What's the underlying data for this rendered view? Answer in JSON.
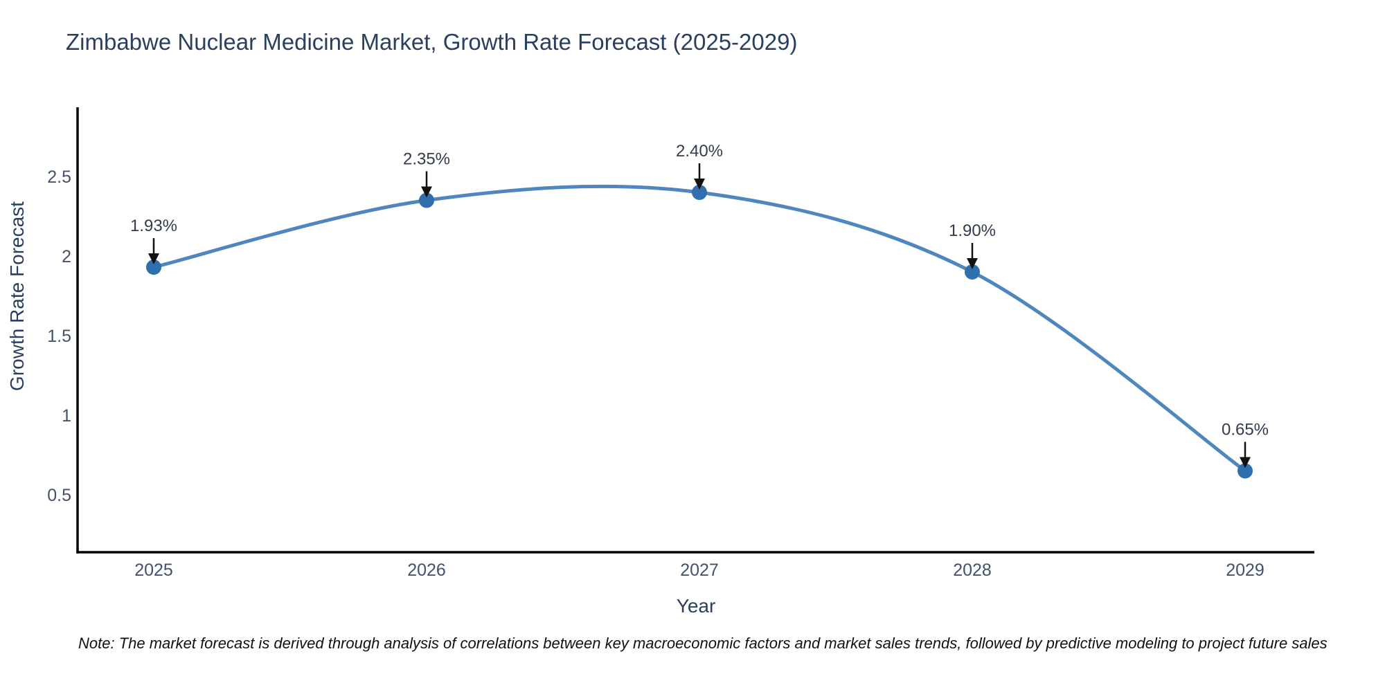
{
  "title": "Zimbabwe Nuclear Medicine Market, Growth Rate Forecast (2025-2029)",
  "note": "Note: The market forecast is derived through analysis of correlations between key macroeconomic factors and market sales trends, followed by predictive modeling to project future sales",
  "chart_data": {
    "type": "line",
    "title": "Zimbabwe Nuclear Medicine Market, Growth Rate Forecast (2025-2029)",
    "xlabel": "Year",
    "ylabel": "Growth Rate Forecast",
    "x": [
      2025,
      2026,
      2027,
      2028,
      2029
    ],
    "values": [
      1.93,
      2.35,
      2.4,
      1.9,
      0.65
    ],
    "point_labels": [
      "1.93%",
      "2.35%",
      "2.40%",
      "1.90%",
      "0.65%"
    ],
    "xticks": [
      "2025",
      "2026",
      "2027",
      "2028",
      "2029"
    ],
    "yticks": [
      0.5,
      1,
      1.5,
      2,
      2.5
    ],
    "ylim": [
      0.14,
      2.93
    ],
    "grid": false,
    "legend": "none",
    "line_shape": "spline",
    "annotation_arrows": "black-down-arrows",
    "colors": {
      "line": "#4e86bd",
      "marker": "#2f6fae",
      "axis": "#000000",
      "title_text": "#2a3f5f",
      "tick_text": "#42516d",
      "annotation_text": "#333b4e",
      "arrow": "#111111",
      "background": "#ffffff"
    }
  }
}
